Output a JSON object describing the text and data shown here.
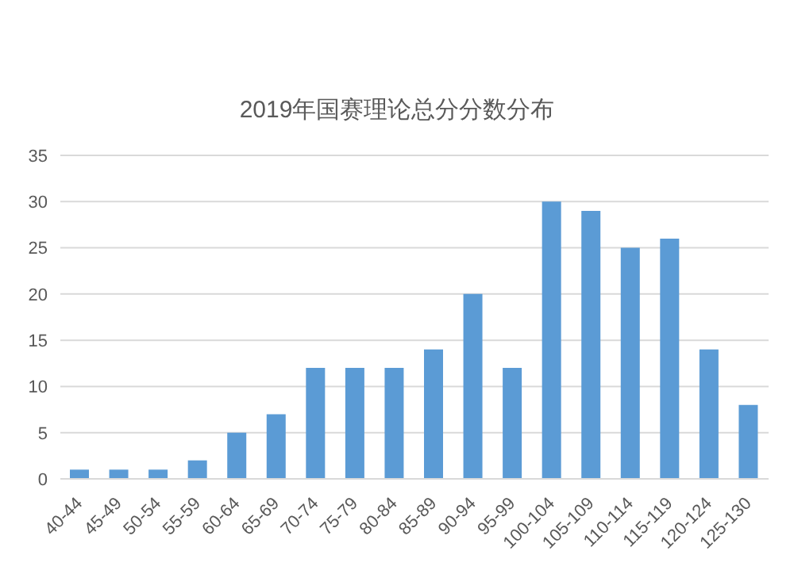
{
  "chart_data": {
    "type": "bar",
    "title": "2019年国赛理论总分分数分布",
    "categories": [
      "40-44",
      "45-49",
      "50-54",
      "55-59",
      "60-64",
      "65-69",
      "70-74",
      "75-79",
      "80-84",
      "85-89",
      "90-94",
      "95-99",
      "100-104",
      "105-109",
      "110-114",
      "115-119",
      "120-124",
      "125-130"
    ],
    "values": [
      1,
      1,
      1,
      2,
      5,
      7,
      12,
      12,
      12,
      14,
      20,
      12,
      30,
      29,
      25,
      26,
      14,
      8
    ],
    "color": "#5b9bd5",
    "ylim": [
      0,
      35
    ],
    "yticks": [
      0,
      5,
      10,
      15,
      20,
      25,
      30,
      35
    ],
    "grid": "y"
  }
}
